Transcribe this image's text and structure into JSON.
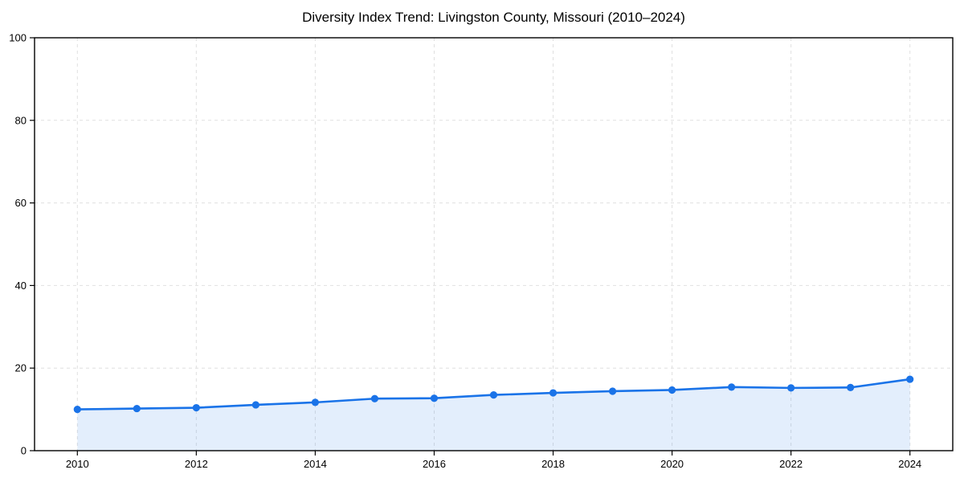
{
  "chart_data": {
    "type": "area",
    "title": "Diversity Index Trend: Livingston County, Missouri (2010–2024)",
    "xlabel": "",
    "ylabel": "",
    "x": [
      2010,
      2011,
      2012,
      2013,
      2014,
      2015,
      2016,
      2017,
      2018,
      2019,
      2020,
      2021,
      2022,
      2023,
      2024
    ],
    "values": [
      10.0,
      10.2,
      10.4,
      11.1,
      11.7,
      12.6,
      12.7,
      13.5,
      14.0,
      14.4,
      14.7,
      15.4,
      15.2,
      15.3,
      17.3
    ],
    "series_name": "Diversity Index",
    "xticks": [
      2010,
      2012,
      2014,
      2016,
      2018,
      2020,
      2022,
      2024
    ],
    "yticks": [
      0,
      20,
      40,
      60,
      80,
      100
    ],
    "xlim": [
      2009.28,
      2024.72
    ],
    "ylim": [
      0,
      100
    ],
    "grid": "dashed",
    "legend": "none",
    "colors": {
      "line": "#1a73e8",
      "marker": "#1a73e8",
      "fill": "rgba(26,115,232,0.12)",
      "grid": "#e0e0e0",
      "axis": "#000000",
      "text": "#000000",
      "background": "#ffffff"
    }
  }
}
